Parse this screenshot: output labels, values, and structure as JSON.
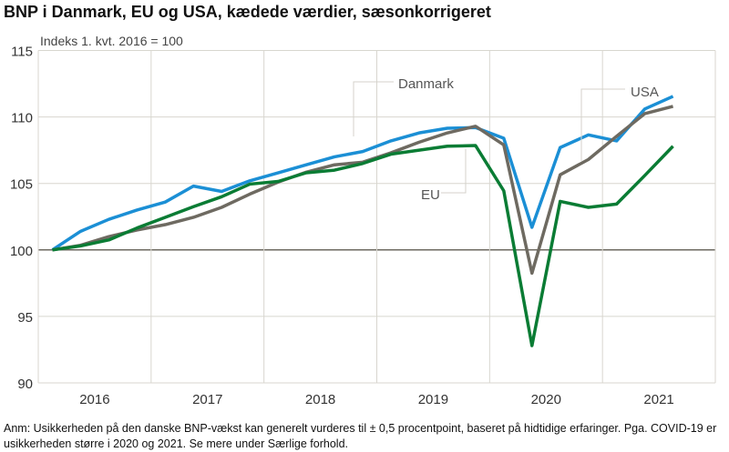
{
  "chart_data": {
    "type": "line",
    "title": "BNP i Danmark, EU og USA, kædede værdier, sæsonkorrigeret",
    "ylabel": "Indeks 1. kvt. 2016 = 100",
    "xlabel": "",
    "ylim": [
      90,
      115
    ],
    "yticks": [
      "90",
      "95",
      "100",
      "105",
      "110",
      "115"
    ],
    "xticks": [
      "2016",
      "2017",
      "2018",
      "2019",
      "2020",
      "2021"
    ],
    "grid": true,
    "x": [
      "2016K1",
      "2016K2",
      "2016K3",
      "2016K4",
      "2017K1",
      "2017K2",
      "2017K3",
      "2017K4",
      "2018K1",
      "2018K2",
      "2018K3",
      "2018K4",
      "2019K1",
      "2019K2",
      "2019K3",
      "2019K4",
      "2020K1",
      "2020K2",
      "2020K3",
      "2020K4",
      "2021K1",
      "2021K2",
      "2021K3"
    ],
    "series": [
      {
        "name": "Danmark",
        "color": "#1b8fd5",
        "values": [
          100,
          101.4,
          102.3,
          103.0,
          103.6,
          104.8,
          104.4,
          105.2,
          105.8,
          106.4,
          107.0,
          107.4,
          108.2,
          108.8,
          109.15,
          109.2,
          108.4,
          101.7,
          107.7,
          108.65,
          108.2,
          110.6,
          111.55
        ]
      },
      {
        "name": "USA",
        "color": "#6e6a61",
        "values": [
          100,
          100.35,
          101.0,
          101.5,
          101.9,
          102.45,
          103.2,
          104.2,
          105.1,
          105.85,
          106.4,
          106.6,
          107.3,
          108.1,
          108.8,
          109.3,
          107.9,
          98.25,
          105.65,
          106.8,
          108.55,
          110.25,
          110.8
        ]
      },
      {
        "name": "EU",
        "color": "#0a7c34",
        "values": [
          100,
          100.3,
          100.75,
          101.65,
          102.45,
          103.25,
          104.0,
          104.95,
          105.15,
          105.8,
          106.0,
          106.5,
          107.2,
          107.5,
          107.8,
          107.85,
          104.45,
          92.8,
          103.65,
          103.2,
          103.45,
          105.6,
          107.8
        ]
      }
    ]
  },
  "footnote": "Anm: Usikkerheden på den danske BNP-vækst kan generelt vurderes til ± 0,5 procentpoint, baseret på hidtidige erfaringer. Pga. COVID-19 er usikkerheden større i 2020 og 2021. Se mere under Særlige forhold."
}
